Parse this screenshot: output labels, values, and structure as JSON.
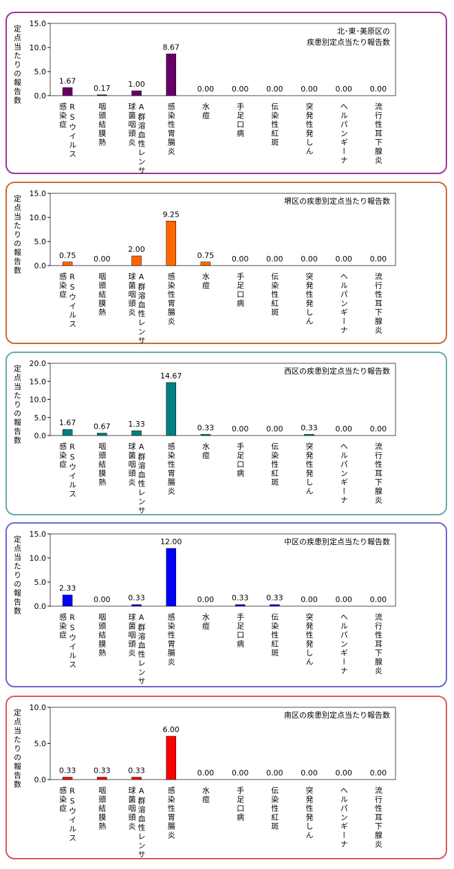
{
  "chart_data": [
    {
      "type": "bar",
      "title": [
        "北･東･美原区の",
        "疾患別定点当たり報告数"
      ],
      "ylabel": "定点当たりの報告数",
      "categories": [
        [
          "RSウイルス",
          "感染症"
        ],
        [
          "咽頭結膜熱"
        ],
        [
          "A群溶血性レンサ",
          "球菌咽頭炎"
        ],
        [
          "感染性胃腸炎"
        ],
        [
          "水痘"
        ],
        [
          "手足口病"
        ],
        [
          "伝染性紅斑"
        ],
        [
          "突発性発しん"
        ],
        [
          "ヘルパンギーナ"
        ],
        [
          "流行性耳下腺炎"
        ]
      ],
      "values": [
        1.67,
        0.17,
        1.0,
        8.67,
        0,
        0,
        0,
        0,
        0,
        0
      ],
      "value_labels": [
        "1.67",
        "0.17",
        "1.00",
        "8.67",
        "0.00",
        "0.00",
        "0.00",
        "0.00",
        "0.00",
        "0.00"
      ],
      "color": "#660066",
      "ylim": [
        0,
        15
      ],
      "yticks": [
        {
          "value": 0,
          "label": "0.0"
        },
        {
          "value": 5,
          "label": "5.0"
        },
        {
          "value": 10,
          "label": "10.0"
        },
        {
          "value": 15,
          "label": "15.0"
        }
      ]
    },
    {
      "type": "bar",
      "title": [
        "堺区の疾患別定点当たり報告数"
      ],
      "ylabel": "定点当たりの報告数",
      "categories": [
        [
          "RSウイルス",
          "感染症"
        ],
        [
          "咽頭結膜熱"
        ],
        [
          "A群溶血性レンサ",
          "球菌咽頭炎"
        ],
        [
          "感染性胃腸炎"
        ],
        [
          "水痘"
        ],
        [
          "手足口病"
        ],
        [
          "伝染性紅斑"
        ],
        [
          "突発性発しん"
        ],
        [
          "ヘルパンギーナ"
        ],
        [
          "流行性耳下腺炎"
        ]
      ],
      "values": [
        0.75,
        0,
        2.0,
        9.25,
        0.75,
        0,
        0,
        0,
        0,
        0
      ],
      "value_labels": [
        "0.75",
        "0.00",
        "2.00",
        "9.25",
        "0.75",
        "0.00",
        "0.00",
        "0.00",
        "0.00",
        "0.00"
      ],
      "color": "#ff6600",
      "ylim": [
        0,
        15
      ],
      "yticks": [
        {
          "value": 0,
          "label": "0.0"
        },
        {
          "value": 5,
          "label": "5.0"
        },
        {
          "value": 10,
          "label": "10.0"
        },
        {
          "value": 15,
          "label": "15.0"
        }
      ]
    },
    {
      "type": "bar",
      "title": [
        "西区の疾患別定点当たり報告数"
      ],
      "ylabel": "定点当たりの報告数",
      "categories": [
        [
          "RSウイルス",
          "感染症"
        ],
        [
          "咽頭結膜熱"
        ],
        [
          "A群溶血性レンサ",
          "球菌咽頭炎"
        ],
        [
          "感染性胃腸炎"
        ],
        [
          "水痘"
        ],
        [
          "手足口病"
        ],
        [
          "伝染性紅斑"
        ],
        [
          "突発性発しん"
        ],
        [
          "ヘルパンギーナ"
        ],
        [
          "流行性耳下腺炎"
        ]
      ],
      "values": [
        1.67,
        0.67,
        1.33,
        14.67,
        0.33,
        0,
        0,
        0.33,
        0,
        0
      ],
      "value_labels": [
        "1.67",
        "0.67",
        "1.33",
        "14.67",
        "0.33",
        "0.00",
        "0.00",
        "0.33",
        "0.00",
        "0.00"
      ],
      "color": "#008080",
      "ylim": [
        0,
        20
      ],
      "yticks": [
        {
          "value": 0,
          "label": "0.0"
        },
        {
          "value": 5,
          "label": "5.0"
        },
        {
          "value": 10,
          "label": "10.0"
        },
        {
          "value": 15,
          "label": "15.0"
        },
        {
          "value": 20,
          "label": "20.0"
        }
      ]
    },
    {
      "type": "bar",
      "title": [
        "中区の疾患別定点当たり報告数"
      ],
      "ylabel": "定点当たりの報告数",
      "categories": [
        [
          "RSウイルス",
          "感染症"
        ],
        [
          "咽頭結膜熱"
        ],
        [
          "A群溶血性レンサ",
          "球菌咽頭炎"
        ],
        [
          "感染性胃腸炎"
        ],
        [
          "水痘"
        ],
        [
          "手足口病"
        ],
        [
          "伝染性紅斑"
        ],
        [
          "突発性発しん"
        ],
        [
          "ヘルパンギーナ"
        ],
        [
          "流行性耳下腺炎"
        ]
      ],
      "values": [
        2.33,
        0,
        0.33,
        12.0,
        0,
        0.33,
        0.33,
        0,
        0,
        0
      ],
      "value_labels": [
        "2.33",
        "0.00",
        "0.33",
        "12.00",
        "0.00",
        "0.33",
        "0.33",
        "0.00",
        "0.00",
        "0.00"
      ],
      "color": "#0000ff",
      "ylim": [
        0,
        15
      ],
      "yticks": [
        {
          "value": 0,
          "label": "0.0"
        },
        {
          "value": 5,
          "label": "5.0"
        },
        {
          "value": 10,
          "label": "10.0"
        },
        {
          "value": 15,
          "label": "15.0"
        }
      ]
    },
    {
      "type": "bar",
      "title": [
        "南区の疾患別定点当たり報告数"
      ],
      "ylabel": "定点当たりの報告数",
      "categories": [
        [
          "RSウイルス",
          "感染症"
        ],
        [
          "咽頭結膜熱"
        ],
        [
          "A群溶血性レンサ",
          "球菌咽頭炎"
        ],
        [
          "感染性胃腸炎"
        ],
        [
          "水痘"
        ],
        [
          "手足口病"
        ],
        [
          "伝染性紅斑"
        ],
        [
          "突発性発しん"
        ],
        [
          "ヘルパンギーナ"
        ],
        [
          "流行性耳下腺炎"
        ]
      ],
      "values": [
        0.33,
        0.33,
        0.33,
        6.0,
        0,
        0,
        0,
        0,
        0,
        0
      ],
      "value_labels": [
        "0.33",
        "0.33",
        "0.33",
        "6.00",
        "0.00",
        "0.00",
        "0.00",
        "0.00",
        "0.00",
        "0.00"
      ],
      "color": "#ff0000",
      "ylim": [
        0,
        10
      ],
      "yticks": [
        {
          "value": 0,
          "label": "0.0"
        },
        {
          "value": 5,
          "label": "5.0"
        },
        {
          "value": 10,
          "label": "10.0"
        }
      ]
    }
  ]
}
